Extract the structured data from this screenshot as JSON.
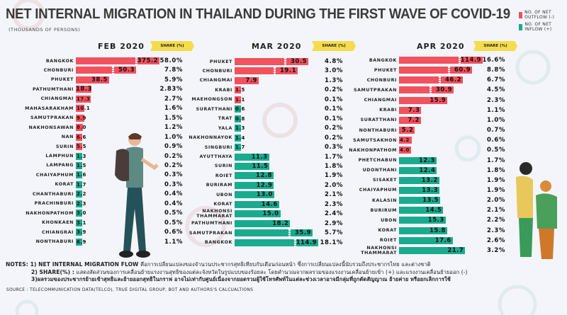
{
  "title": "NET INTERNAL MIGRATION IN THAILAND DURING THE FIRST WAVE OF COVID-19",
  "subtitle": "(THOUSANDS OF PERSONS)",
  "legend": [
    {
      "label": "NO. OF NET OUTFLOW (-)",
      "color": "#f2515e"
    },
    {
      "label": "NO. OF NET INFLOW (+)",
      "color": "#1aab8f"
    }
  ],
  "share_header": "SHARE (%)",
  "chart_data": [
    {
      "type": "bar",
      "orientation": "horizontal",
      "title": "FEB 2020",
      "categories": [
        "BANGKOK",
        "CHONBURI",
        "PHUKET",
        "PATHUMTHANI",
        "CHIANGMAI",
        "MAHASARAKHAM",
        "SAMUTPRAKAN",
        "NAKHONSAWAN",
        "NAN",
        "SURIN",
        "LAMPHUN",
        "LAMPANG",
        "CHAIYAPHUM",
        "KORAT",
        "CHANTHABURI",
        "PRACHINBURI",
        "NAKHONPATHOM",
        "KHONKAEN",
        "CHIANGRAI",
        "NONTHABURI"
      ],
      "values": [
        "375.2",
        "50.3",
        "38.5",
        "18.3",
        "17.3",
        "10.1",
        "9.9",
        "8.0",
        "6.6",
        "5.5",
        "1.3",
        "1.5",
        "1.6",
        "1.7",
        "2.2",
        "2.3",
        "3.0",
        "3.1",
        "3.9",
        "6.9"
      ],
      "flow": [
        "out",
        "out",
        "out",
        "out",
        "out",
        "out",
        "out",
        "out",
        "out",
        "out",
        "in",
        "in",
        "in",
        "in",
        "in",
        "in",
        "in",
        "in",
        "in",
        "in"
      ],
      "share": [
        "58.0%",
        "7.8%",
        "5.9%",
        "2.83%",
        "2.7%",
        "1.6%",
        "1.5%",
        "1.2%",
        "1.0%",
        "0.9%",
        "0.2%",
        "0.2%",
        "0.3%",
        "0.3%",
        "0.4%",
        "0.4%",
        "0.5%",
        "0.5%",
        "0.6%",
        "1.1%"
      ],
      "axis_break": [
        "BANGKOK",
        "CHONBURI"
      ]
    },
    {
      "type": "bar",
      "orientation": "horizontal",
      "title": "MAR 2020",
      "categories": [
        "PHUKET",
        "CHONBURI",
        "CHIANGMAI",
        "KRABI",
        "MAEHONGSON",
        "SURATTHANI",
        "TRAT",
        "YALA",
        "NAKHONNAYOK",
        "SINGBURI",
        "AYUTTHAYA",
        "SURIN",
        "ROIET",
        "BURIRAM",
        "UBON",
        "KORAT",
        "NAKHONSI THAMMARAT",
        "PATHUMTHANI",
        "SAMUTPRAKAN",
        "BANGKOK"
      ],
      "values": [
        "30.5",
        "19.1",
        "7.9",
        "1.5",
        "1.1",
        "0.6",
        "0.8",
        "1.3",
        "1.4",
        "1.7",
        "11.3",
        "11.5",
        "12.8",
        "12.9",
        "13.0",
        "14.6",
        "15.0",
        "18.2",
        "35.9",
        "114.9"
      ],
      "flow": [
        "out",
        "out",
        "out",
        "out",
        "out",
        "in",
        "in",
        "in",
        "in",
        "in",
        "in",
        "in",
        "in",
        "in",
        "in",
        "in",
        "in",
        "in",
        "in",
        "in"
      ],
      "share": [
        "4.8%",
        "3.0%",
        "1.3%",
        "0.2%",
        "0.1%",
        "0.1%",
        "0.1%",
        "0.2%",
        "0.2%",
        "0.3%",
        "1.7%",
        "1.8%",
        "1.9%",
        "2.0%",
        "2.1%",
        "2.3%",
        "2.4%",
        "2.9%",
        "5.7%",
        "18.1%"
      ],
      "axis_break": [
        "PHUKET",
        "CHONBURI",
        "SAMUTPRAKAN",
        "BANGKOK"
      ]
    },
    {
      "type": "bar",
      "orientation": "horizontal",
      "title": "APR 2020",
      "categories": [
        "BANGKOK",
        "PHUKET",
        "CHONBURI",
        "SAMUTPRAKAN",
        "CHIANGMAI",
        "KRABI",
        "SURATTHANI",
        "NONTHABURI",
        "SAMUTSAKHON",
        "NAKHONPATHOM",
        "PHETCHABUN",
        "UDONTHANI",
        "SISAKET",
        "CHAIYAPHUM",
        "KALASIN",
        "BURIRUM",
        "UBON",
        "KORAT",
        "ROIET",
        "NAKHONSI THAMMARAT"
      ],
      "values": [
        "114.9",
        "60.9",
        "46.2",
        "30.9",
        "15.9",
        "7.3",
        "7.2",
        "5.2",
        "4.2",
        "4.0",
        "12.3",
        "12.4",
        "13.2",
        "13.3",
        "13.5",
        "14.5",
        "15.3",
        "15.8",
        "17.6",
        "21.7"
      ],
      "flow": [
        "out",
        "out",
        "out",
        "out",
        "out",
        "out",
        "out",
        "out",
        "out",
        "out",
        "in",
        "in",
        "in",
        "in",
        "in",
        "in",
        "in",
        "in",
        "in",
        "in"
      ],
      "share": [
        "16.6%",
        "8.8%",
        "6.7%",
        "4.5%",
        "2.3%",
        "1.1%",
        "1.0%",
        "0.7%",
        "0.6%",
        "0.5%",
        "1.7%",
        "1.8%",
        "1.9%",
        "1.9%",
        "2.0%",
        "2.1%",
        "2.2%",
        "2.3%",
        "2.6%",
        "3.2%"
      ],
      "axis_break": [
        "BANGKOK",
        "PHUKET",
        "CHONBURI",
        "SAMUTPRAKAN"
      ]
    }
  ],
  "notes": {
    "label": "NOTES:",
    "n1_head": "1) NET INTERNAL MIGRATION FLOW",
    "n1_text": "คือการเปลี่ยนแปลงของจำนวนประชากรสุทธิเทียบกับเดือนก่อนหน้า ซึ่งการเปลี่ยนแปลงนี้นับรวมถึงประชากรไทย และต่างชาติ",
    "n2_head": "2) SHARE(%) :",
    "n2_text": "แสดงสัดส่วนของการเคลื่อนย้ายแรงงานสุทธิของแต่ละจังหวัดในรูปแบบของร้อยละ โดยคำนวณจากผลรวมของแรงงานเคลื่อนย้ายเข้า (+) และแรงงานเคลื่อนย้ายออก (-)",
    "n3_text": "3)ผลรวมของประชากรย้ายเข้าสุทธิและย้ายออกสุทธิในกราฟ อาจไม่เท่ากับศูนย์เนื่องจากยอดรวมผู้ใช้โทรศัพท์ในแต่ละช่วงเวลาอาจมีกลุ่มที่ถูกตัดสัญญาณ ย้ายค่าย หรือยกเลิกการใช้"
  },
  "source": "SOURCE : TELECOMMUNICATION DATA(TELCO), TRUE DIGITAL GROUP, BOT AND AUTHORS'S CALCUALTIONS"
}
